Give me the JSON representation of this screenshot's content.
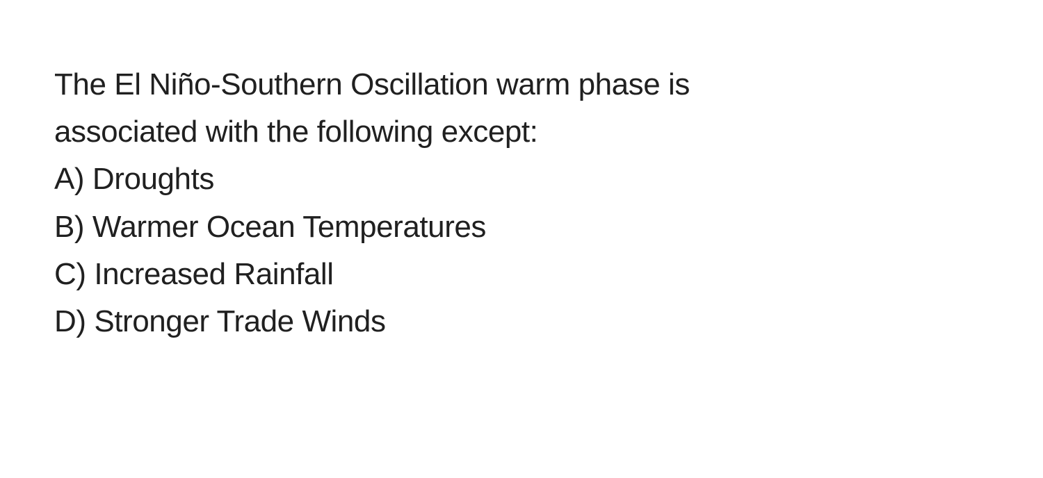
{
  "question": {
    "stem_line1": "The El Niño-Southern Oscillation warm phase is",
    "stem_line2": "associated with the following except:",
    "options": [
      {
        "label": "A) Droughts"
      },
      {
        "label": "B) Warmer Ocean Temperatures"
      },
      {
        "label": "C) Increased Rainfall"
      },
      {
        "label": "D) Stronger Trade Winds"
      }
    ]
  },
  "style": {
    "font_size_pt": 33,
    "text_color": "#202020",
    "background_color": "#ffffff",
    "line_height": 1.55
  }
}
